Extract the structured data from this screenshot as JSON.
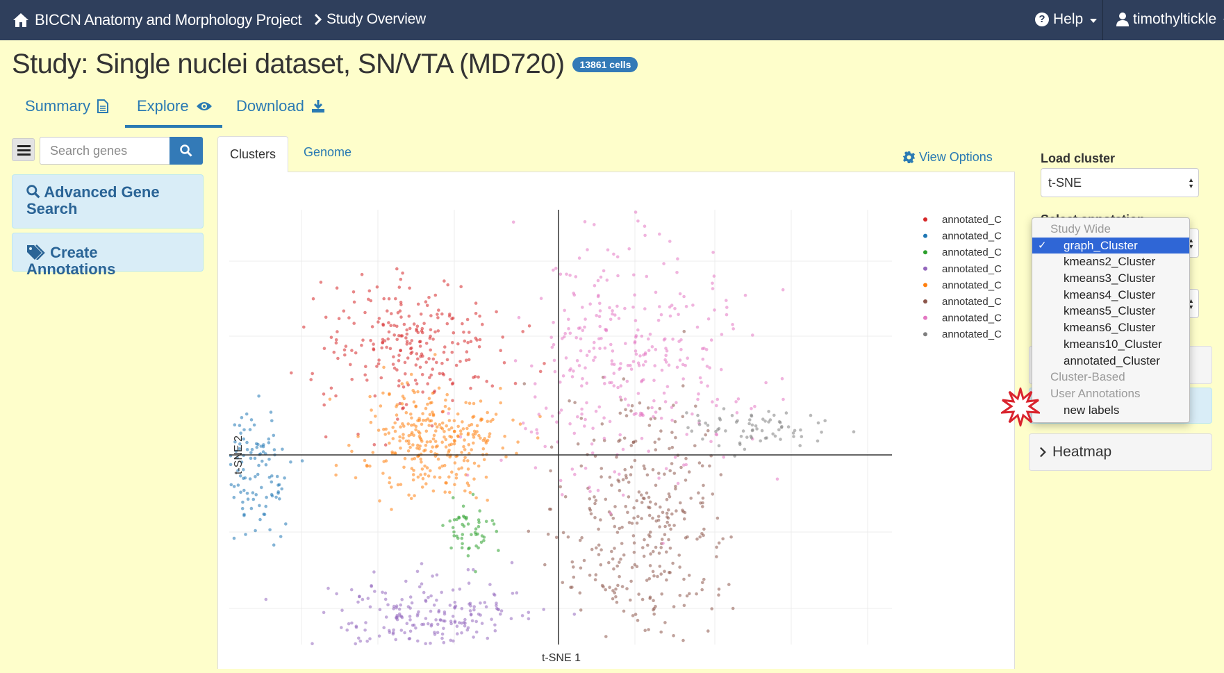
{
  "navbar": {
    "brand": "BICCN Anatomy and Morphology Project",
    "breadcrumb": "Study Overview",
    "help": "Help",
    "user": "timothyltickle"
  },
  "study": {
    "title": "Study: Single nuclei dataset, SN/VTA (MD720)",
    "cell_badge": "13861 cells"
  },
  "main_tabs": [
    {
      "label": "Summary",
      "icon": "file-icon"
    },
    {
      "label": "Explore",
      "icon": "eye-icon"
    },
    {
      "label": "Download",
      "icon": "download-icon"
    }
  ],
  "sidebar": {
    "search_placeholder": "Search genes",
    "advanced_search": "Advanced Gene Search",
    "create_annotations": "Create Annotations"
  },
  "plot_tabs": {
    "clusters": "Clusters",
    "genome": "Genome",
    "view_options": "View Options"
  },
  "right_panel": {
    "load_cluster_label": "Load cluster",
    "load_cluster_value": "t-SNE",
    "annotation_label_partial": "Select annotation",
    "heatmap": "Heatmap"
  },
  "dropdown": {
    "groups": [
      {
        "label": "Study Wide",
        "items": [
          "graph_Cluster",
          "kmeans2_Cluster",
          "kmeans3_Cluster",
          "kmeans4_Cluster",
          "kmeans5_Cluster",
          "kmeans6_Cluster",
          "kmeans10_Cluster",
          "annotated_Cluster"
        ]
      },
      {
        "label": "Cluster-Based",
        "items": []
      },
      {
        "label": "User Annotations",
        "items": [
          "new labels"
        ]
      }
    ],
    "selected": "graph_Cluster",
    "highlight_color": "#2f66d6"
  },
  "chart_data": {
    "type": "scatter",
    "xlabel": "t-SNE 1",
    "ylabel": "t-SNE 2",
    "legend_position": "top-right",
    "legend": [
      {
        "name": "annotated_C",
        "color": "#d62728"
      },
      {
        "name": "annotated_C",
        "color": "#1f77b4"
      },
      {
        "name": "annotated_C",
        "color": "#2ca02c"
      },
      {
        "name": "annotated_C",
        "color": "#9467bd"
      },
      {
        "name": "annotated_C",
        "color": "#ff7f0e"
      },
      {
        "name": "annotated_C",
        "color": "#8c564b"
      },
      {
        "name": "annotated_C",
        "color": "#e377c2"
      },
      {
        "name": "annotated_C",
        "color": "#7f7f7f"
      }
    ],
    "clusters": [
      {
        "color": "#d62728",
        "cx": -22,
        "cy": 17,
        "n": 240
      },
      {
        "color": "#1f77b4",
        "cx": -47,
        "cy": -3,
        "n": 120
      },
      {
        "color": "#2ca02c",
        "cx": -14,
        "cy": -11,
        "n": 50
      },
      {
        "color": "#9467bd",
        "cx": -20,
        "cy": -24,
        "n": 200
      },
      {
        "color": "#ff7f0e",
        "cx": -19,
        "cy": 2,
        "n": 300
      },
      {
        "color": "#8c564b",
        "cx": 13,
        "cy": -11,
        "n": 330
      },
      {
        "color": "#e377c2",
        "cx": 10,
        "cy": 15,
        "n": 320
      },
      {
        "color": "#7f7f7f",
        "cx": 30,
        "cy": 4,
        "n": 70
      }
    ]
  }
}
